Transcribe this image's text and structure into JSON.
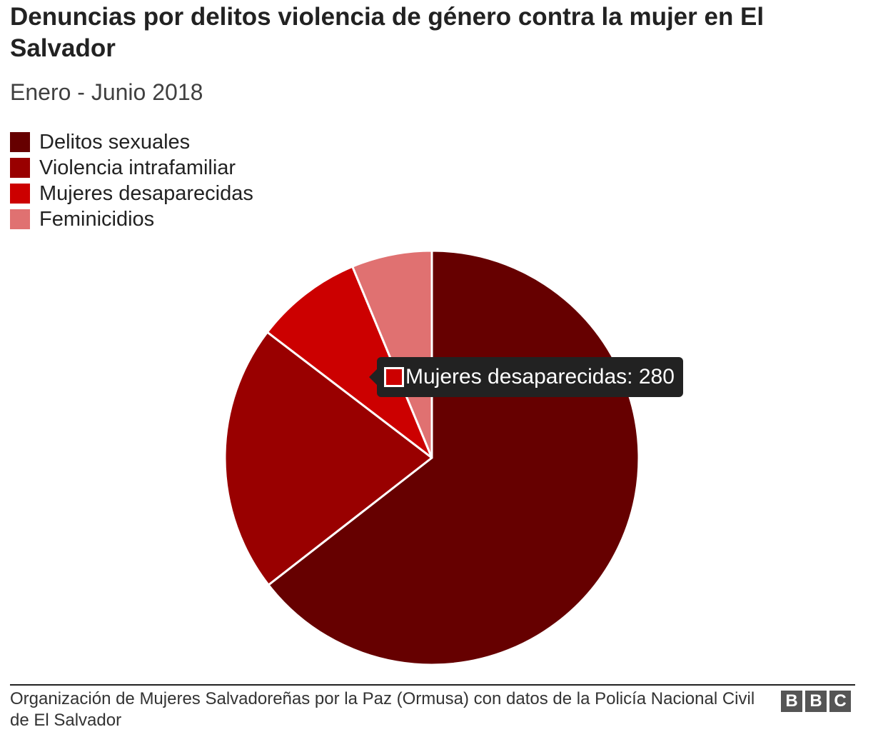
{
  "chart_data": {
    "type": "pie",
    "title": "Denuncias por delitos violencia de género contra la mujer en El Salvador",
    "subtitle": "Enero - Junio 2018",
    "legend_position": "top-left",
    "series": [
      {
        "name": "Delitos sexuales",
        "value": 2160,
        "color": "#660000"
      },
      {
        "name": "Violencia intrafamiliar",
        "value": 700,
        "color": "#990000"
      },
      {
        "name": "Mujeres desaparecidas",
        "value": 280,
        "color": "#CC0000"
      },
      {
        "name": "Feminicidios",
        "value": 210,
        "color": "#E07171"
      }
    ],
    "tooltip": {
      "label": "Mujeres desaparecidas: 280",
      "color": "#CC0000"
    }
  },
  "source": "Organización de Mujeres Salvadoreñas por la Paz (Ormusa) con datos de la Policía Nacional Civil de El Salvador",
  "logo": {
    "letters": [
      "B",
      "B",
      "C"
    ]
  }
}
